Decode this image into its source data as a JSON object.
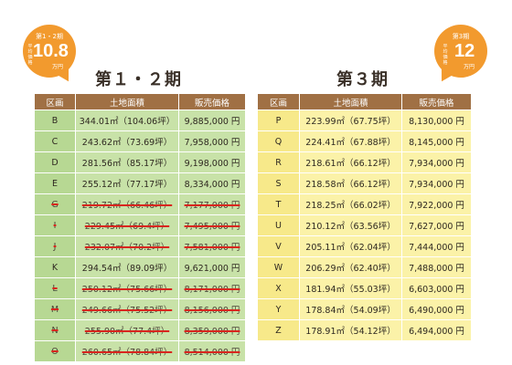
{
  "badges": {
    "left": {
      "title": "第1・2期",
      "caption": "平均価格",
      "value": "10.8",
      "unit": "万円"
    },
    "right": {
      "title": "第3期",
      "caption": "平均価格",
      "value": "12",
      "unit": "万円"
    }
  },
  "sections": {
    "phase12": {
      "title": "第１・２期"
    },
    "phase3": {
      "title": "第３期"
    }
  },
  "table_headers": {
    "lot": "区画",
    "area": "土地面積",
    "price": "販売価格"
  },
  "phase12_rows": [
    {
      "lot": "B",
      "area": "344.01㎡（104.06坪）",
      "price": "9,885,000 円",
      "sold": false
    },
    {
      "lot": "C",
      "area": "243.62㎡（73.69坪）",
      "price": "7,958,000 円",
      "sold": false
    },
    {
      "lot": "D",
      "area": "281.56㎡（85.17坪）",
      "price": "9,198,000 円",
      "sold": false
    },
    {
      "lot": "E",
      "area": "255.12㎡（77.17坪）",
      "price": "8,334,000 円",
      "sold": false
    },
    {
      "lot": "G",
      "area": "219.72㎡（66.46坪）",
      "price": "7,177,000 円",
      "sold": true
    },
    {
      "lot": "I",
      "area": "229.45㎡（69.4坪）",
      "price": "7,495,000 円",
      "sold": true
    },
    {
      "lot": "J",
      "area": "232.07㎡（70.2坪）",
      "price": "7,581,000 円",
      "sold": true
    },
    {
      "lot": "K",
      "area": "294.54㎡（89.09坪）",
      "price": "9,621,000 円",
      "sold": false
    },
    {
      "lot": "L",
      "area": "250.12㎡（75.66坪）",
      "price": "8,171,000 円",
      "sold": true
    },
    {
      "lot": "M",
      "area": "249.66㎡（75.52坪）",
      "price": "8,156,000 円",
      "sold": true
    },
    {
      "lot": "N",
      "area": "255.90㎡（77.4坪）",
      "price": "8,359,000 円",
      "sold": true
    },
    {
      "lot": "O",
      "area": "260.65㎡（78.84坪）",
      "price": "8,514,000 円",
      "sold": true
    }
  ],
  "phase3_rows": [
    {
      "lot": "P",
      "area": "223.99㎡（67.75坪）",
      "price": "8,130,000 円"
    },
    {
      "lot": "Q",
      "area": "224.41㎡（67.88坪）",
      "price": "8,145,000 円"
    },
    {
      "lot": "R",
      "area": "218.61㎡（66.12坪）",
      "price": "7,934,000 円"
    },
    {
      "lot": "S",
      "area": "218.58㎡（66.12坪）",
      "price": "7,934,000 円"
    },
    {
      "lot": "T",
      "area": "218.25㎡（66.02坪）",
      "price": "7,922,000 円"
    },
    {
      "lot": "U",
      "area": "210.12㎡（63.56坪）",
      "price": "7,627,000 円"
    },
    {
      "lot": "V",
      "area": "205.11㎡（62.04坪）",
      "price": "7,444,000 円"
    },
    {
      "lot": "W",
      "area": "206.29㎡（62.40坪）",
      "price": "7,488,000 円"
    },
    {
      "lot": "X",
      "area": "181.94㎡（55.03坪）",
      "price": "6,603,000 円"
    },
    {
      "lot": "Y",
      "area": "178.84㎡（54.09坪）",
      "price": "6,490,000 円"
    },
    {
      "lot": "Z",
      "area": "178.91㎡（54.12坪）",
      "price": "6,494,000 円"
    }
  ],
  "colors": {
    "badge": "#f29a2e",
    "header": "#a07044",
    "phase12_row": "#c8e2a8",
    "phase3_row": "#fbf2a8",
    "strike": "#d8261e"
  }
}
